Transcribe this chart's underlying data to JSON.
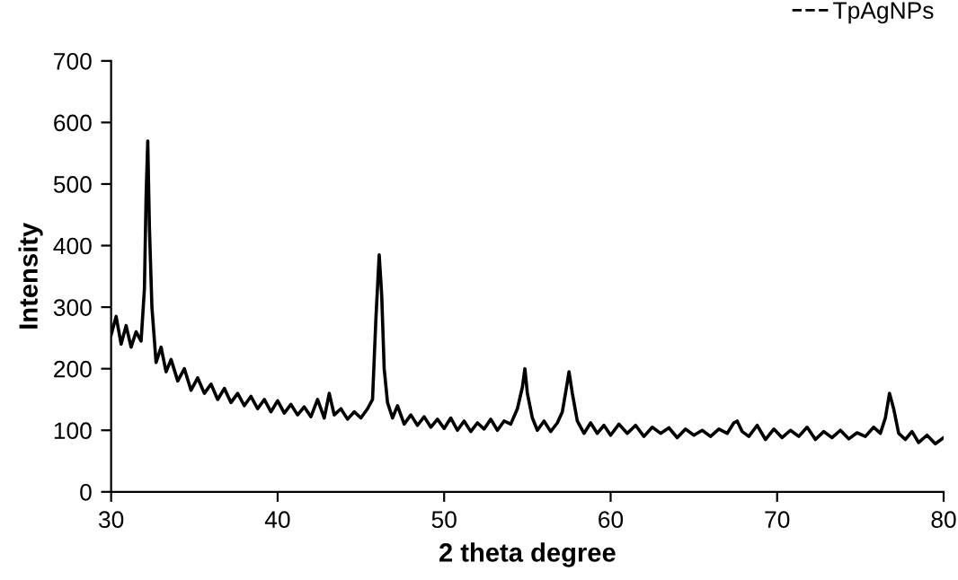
{
  "chart_data": {
    "type": "line",
    "xlabel": "2 theta degree",
    "ylabel": "Intensity",
    "xlim": [
      30,
      80
    ],
    "ylim": [
      0,
      700
    ],
    "xticks": [
      30,
      40,
      50,
      60,
      70,
      80
    ],
    "yticks": [
      0,
      100,
      200,
      300,
      400,
      500,
      600,
      700
    ],
    "grid": false,
    "legend": "top right",
    "marker": "none",
    "line_style": "solid",
    "series": [
      {
        "name": "TpAgNPs",
        "color": "#000000",
        "x": [
          30,
          30.3,
          30.6,
          30.9,
          31.2,
          31.5,
          31.8,
          32.0,
          32.1,
          32.2,
          32.3,
          32.45,
          32.7,
          33.0,
          33.3,
          33.6,
          34.0,
          34.4,
          34.8,
          35.2,
          35.6,
          36.0,
          36.4,
          36.8,
          37.2,
          37.6,
          38.0,
          38.4,
          38.8,
          39.2,
          39.6,
          40.0,
          40.4,
          40.8,
          41.2,
          41.6,
          42.0,
          42.4,
          42.8,
          43.1,
          43.4,
          43.8,
          44.2,
          44.6,
          45.0,
          45.4,
          45.7,
          45.9,
          46.1,
          46.25,
          46.4,
          46.6,
          46.9,
          47.2,
          47.6,
          48.0,
          48.4,
          48.8,
          49.2,
          49.6,
          50.0,
          50.4,
          50.8,
          51.2,
          51.6,
          52.0,
          52.4,
          52.8,
          53.2,
          53.6,
          54.0,
          54.4,
          54.7,
          54.85,
          55.0,
          55.3,
          55.6,
          56.0,
          56.4,
          56.8,
          57.1,
          57.35,
          57.5,
          57.7,
          58.0,
          58.4,
          58.8,
          59.2,
          59.6,
          60.0,
          60.5,
          61.0,
          61.5,
          62.0,
          62.5,
          63.0,
          63.5,
          64.0,
          64.5,
          65.0,
          65.5,
          66.0,
          66.5,
          67.0,
          67.4,
          67.6,
          67.9,
          68.3,
          68.8,
          69.3,
          69.8,
          70.3,
          70.8,
          71.3,
          71.8,
          72.3,
          72.8,
          73.3,
          73.8,
          74.3,
          74.8,
          75.3,
          75.8,
          76.2,
          76.5,
          76.75,
          77.0,
          77.3,
          77.7,
          78.1,
          78.5,
          79.0,
          79.5,
          80.0
        ],
        "values": [
          255,
          285,
          240,
          270,
          235,
          260,
          245,
          330,
          480,
          570,
          430,
          300,
          210,
          235,
          195,
          215,
          180,
          200,
          165,
          185,
          160,
          175,
          150,
          168,
          145,
          160,
          140,
          155,
          135,
          150,
          130,
          148,
          128,
          142,
          125,
          138,
          122,
          150,
          120,
          160,
          125,
          135,
          118,
          130,
          120,
          135,
          150,
          280,
          385,
          320,
          200,
          145,
          120,
          140,
          110,
          125,
          108,
          122,
          105,
          118,
          103,
          120,
          100,
          115,
          98,
          112,
          102,
          118,
          100,
          115,
          110,
          135,
          170,
          200,
          160,
          120,
          100,
          115,
          98,
          112,
          130,
          170,
          195,
          160,
          115,
          95,
          112,
          95,
          108,
          92,
          110,
          95,
          108,
          90,
          105,
          95,
          104,
          88,
          102,
          92,
          100,
          90,
          102,
          95,
          112,
          115,
          98,
          90,
          108,
          85,
          102,
          88,
          100,
          90,
          105,
          85,
          98,
          88,
          100,
          86,
          96,
          90,
          105,
          95,
          120,
          160,
          135,
          95,
          85,
          98,
          80,
          92,
          78,
          88
        ]
      }
    ]
  }
}
